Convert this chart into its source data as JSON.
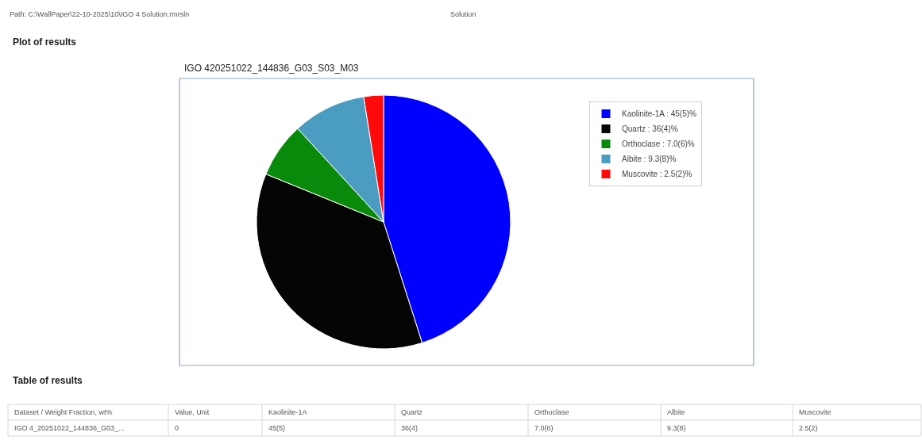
{
  "chart_data": {
    "type": "pie",
    "title": "IGO 420251022_144836_G03_S03_M03",
    "categories": [
      "Kaolinite-1A : 45(5)%",
      "Quartz : 36(4)%",
      "Orthoclase : 7.0(6)%",
      "Albite : 9.3(8)%",
      "Muscovite : 2.5(2)%"
    ],
    "values": [
      45,
      36,
      7.0,
      9.3,
      2.5
    ],
    "colors": [
      "#0000ff",
      "#050505",
      "#0a8a0a",
      "#4a9cc0",
      "#ff0a0a"
    ],
    "legend": "top right",
    "annotations": [
      "Path: C:\\WallPaper\\22-10-2025\\10\\IGO 4 Solution.rmrsln",
      "Solution",
      "Plot of results",
      "Table of results",
      "Dataset / Weight Fraction, wt%",
      "Value, Unit",
      "Kaolinite-1A",
      "Quartz",
      "Orthoclase",
      "Albite",
      "Muscovite",
      "IGO 4_20251022_144836_G03_...",
      "0",
      "45(5)",
      "36(4)",
      "7.0(6)",
      "9.3(8)",
      "2.5(2)"
    ]
  }
}
